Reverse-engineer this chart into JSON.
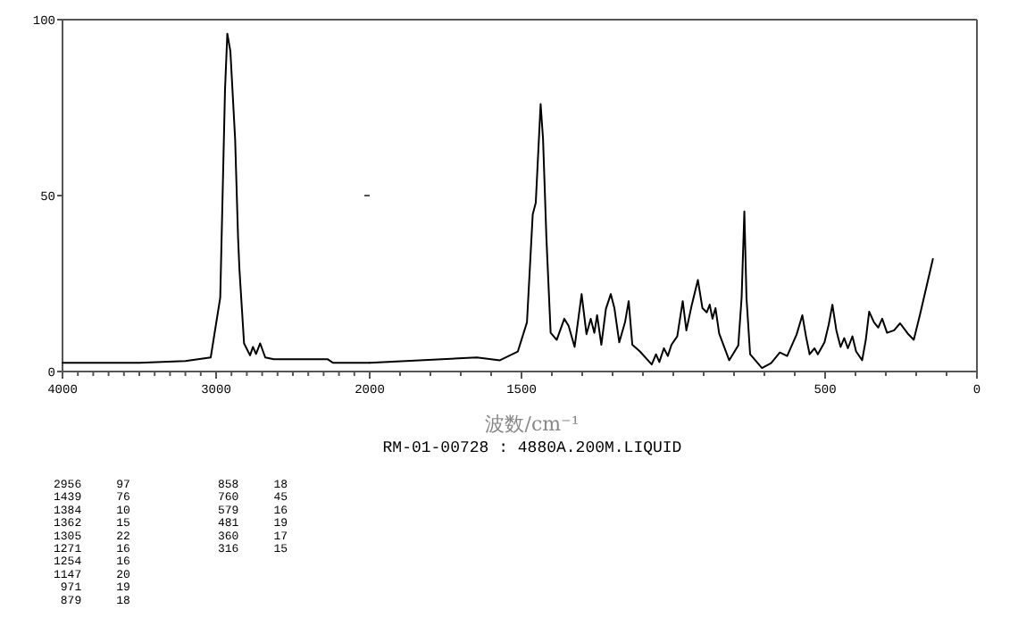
{
  "chart_data": [
    {
      "type": "line",
      "xlabel": "波数/cm⁻¹",
      "color": "#000000",
      "x": [
        4000,
        3500,
        3200,
        3035,
        2973,
        2942,
        2927,
        2907,
        2876,
        2857,
        2848,
        2818,
        2779,
        2760,
        2740,
        2713,
        2680,
        2624,
        2275,
        2240,
        2000
      ],
      "values": [
        2.5,
        2.5,
        3,
        4,
        21,
        80,
        96,
        91,
        66,
        38,
        29,
        8,
        4.6,
        7,
        5,
        8,
        4,
        3.5,
        3.5,
        2.5,
        2.5
      ],
      "xlim": [
        4000,
        2000
      ],
      "ylim": [
        0,
        100
      ],
      "xticks": [
        4000,
        {
          "value": 3900,
          "label": null
        },
        {
          "value": 3800,
          "label": null
        },
        {
          "value": 3700,
          "label": null
        },
        {
          "value": 3600,
          "label": null
        },
        {
          "value": 3500,
          "label": null
        },
        {
          "value": 3400,
          "label": null
        },
        {
          "value": 3300,
          "label": null
        },
        {
          "value": 3200,
          "label": null
        },
        {
          "value": 3100,
          "label": null
        },
        3000,
        {
          "value": 2900,
          "label": null
        },
        {
          "value": 2800,
          "label": null
        },
        {
          "value": 2700,
          "label": null
        },
        {
          "value": 2600,
          "label": null
        },
        {
          "value": 2500,
          "label": null
        },
        {
          "value": 2400,
          "label": null
        },
        {
          "value": 2300,
          "label": null
        },
        {
          "value": 2200,
          "label": null
        },
        {
          "value": 2100,
          "label": null
        },
        2000
      ],
      "yticks": [
        0,
        50,
        100
      ],
      "annotations": [
        "RM-01-00728 : 4880A.200M.LIQUID",
        "2956  97",
        "1439  76",
        "1384  10",
        "1362  15",
        "1305  22",
        "1271  16",
        "1254  16",
        "1147  20",
        " 971  19",
        " 879  18",
        "858  18",
        "760  45",
        "579  16",
        "481  19",
        "360  17",
        "316  15"
      ]
    },
    {
      "type": "line",
      "color": "#000000",
      "x": [
        2000,
        1647,
        1571,
        1512,
        1482,
        1463,
        1453,
        1437,
        1429,
        1418,
        1404,
        1384,
        1359,
        1345,
        1325,
        1302,
        1286,
        1272,
        1260,
        1251,
        1237,
        1222,
        1206,
        1194,
        1178,
        1159,
        1147,
        1135,
        1110,
        1071,
        1057,
        1046,
        1031,
        1018,
        1006,
        987,
        969,
        957,
        939,
        919,
        904,
        890,
        880,
        871,
        861,
        849,
        816,
        786,
        775,
        766,
        759,
        747,
        708,
        678,
        649,
        625,
        594,
        575,
        563,
        551,
        535,
        524,
        502,
        488,
        476,
        463,
        449,
        437,
        425,
        410,
        398,
        378,
        366,
        355,
        339,
        325,
        312,
        296,
        273,
        253,
        228,
        208,
        188,
        145
      ],
      "values": [
        2.5,
        4,
        3.2,
        5.7,
        14,
        44.7,
        48,
        76,
        66,
        38,
        11,
        9,
        15,
        13,
        7,
        22,
        10.6,
        15,
        11,
        16,
        7.6,
        17.8,
        22,
        18,
        8.3,
        14,
        20,
        7.6,
        5.7,
        2,
        4.9,
        2.7,
        6.6,
        4.4,
        7.6,
        10,
        20,
        11.7,
        19,
        26,
        18,
        16.8,
        19,
        15,
        18,
        10.8,
        3.2,
        7.4,
        21,
        45.5,
        21,
        4.9,
        1,
        2.4,
        5.4,
        4.4,
        10.5,
        16,
        10,
        4.9,
        6.6,
        4.9,
        8.3,
        13.4,
        19,
        11.7,
        7,
        9.5,
        6.6,
        10,
        5.7,
        3.2,
        9,
        17,
        14,
        12.5,
        15,
        11,
        11.7,
        13.7,
        10.8,
        9,
        16,
        32
      ],
      "xlim": [
        2000,
        0
      ],
      "ylim": [
        0,
        100
      ],
      "tick_labels": "x",
      "xticks": [
        {
          "value": 1900,
          "label": null
        },
        {
          "value": 1800,
          "label": null
        },
        {
          "value": 1700,
          "label": null
        },
        {
          "value": 1600,
          "label": null
        },
        1500,
        {
          "value": 1400,
          "label": null
        },
        {
          "value": 1300,
          "label": null
        },
        {
          "value": 1200,
          "label": null
        },
        {
          "value": 1100,
          "label": null
        },
        {
          "value": 1000,
          "label": null
        },
        {
          "value": 900,
          "label": null
        },
        {
          "value": 800,
          "label": null
        },
        {
          "value": 700,
          "label": null
        },
        {
          "value": 600,
          "label": null
        },
        500,
        {
          "value": 400,
          "label": null
        },
        {
          "value": 300,
          "label": null
        },
        {
          "value": 200,
          "label": null
        },
        {
          "value": 100,
          "label": null
        },
        0
      ],
      "yticks": [
        0,
        50,
        100
      ]
    }
  ]
}
